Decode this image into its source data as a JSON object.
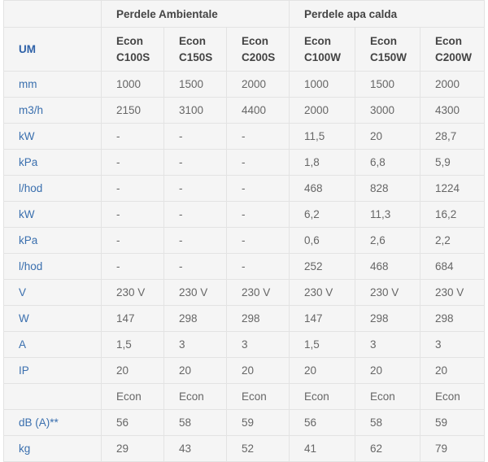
{
  "groups": [
    "Perdele Ambientale",
    "Perdele apa calda"
  ],
  "um_header": "UM",
  "models": [
    [
      "Econ",
      "C100S"
    ],
    [
      "Econ",
      "C150S"
    ],
    [
      "Econ",
      "C200S"
    ],
    [
      "Econ",
      "C100W"
    ],
    [
      "Econ",
      "C150W"
    ],
    [
      "Econ",
      "C200W"
    ]
  ],
  "rows": [
    [
      "mm",
      "1000",
      "1500",
      "2000",
      "1000",
      "1500",
      "2000"
    ],
    [
      "m3/h",
      "2150",
      "3100",
      "4400",
      "2000",
      "3000",
      "4300"
    ],
    [
      "kW",
      "-",
      "-",
      "-",
      "11,5",
      "20",
      "28,7"
    ],
    [
      "kPa",
      "-",
      "-",
      "-",
      "1,8",
      "6,8",
      "5,9"
    ],
    [
      "l/hod",
      "-",
      "-",
      "-",
      "468",
      "828",
      "1224"
    ],
    [
      "kW",
      "-",
      "-",
      "-",
      "6,2",
      "11,3",
      "16,2"
    ],
    [
      "kPa",
      "-",
      "-",
      "-",
      "0,6",
      "2,6",
      "2,2"
    ],
    [
      "l/hod",
      "-",
      "-",
      "-",
      "252",
      "468",
      "684"
    ],
    [
      "V",
      "230 V",
      "230 V",
      "230 V",
      "230 V",
      "230 V",
      "230 V"
    ],
    [
      "W",
      "147",
      "298",
      "298",
      "147",
      "298",
      "298"
    ],
    [
      "A",
      "1,5",
      "3",
      "3",
      "1,5",
      "3",
      "3"
    ],
    [
      "IP",
      "20",
      "20",
      "20",
      "20",
      "20",
      "20"
    ],
    [
      "",
      "Econ",
      "Econ",
      "Econ",
      "Econ",
      "Econ",
      "Econ"
    ],
    [
      "dB (A)**",
      "56",
      "58",
      "59",
      "56",
      "58",
      "59"
    ],
    [
      "kg",
      "29",
      "43",
      "52",
      "41",
      "62",
      "79"
    ]
  ]
}
